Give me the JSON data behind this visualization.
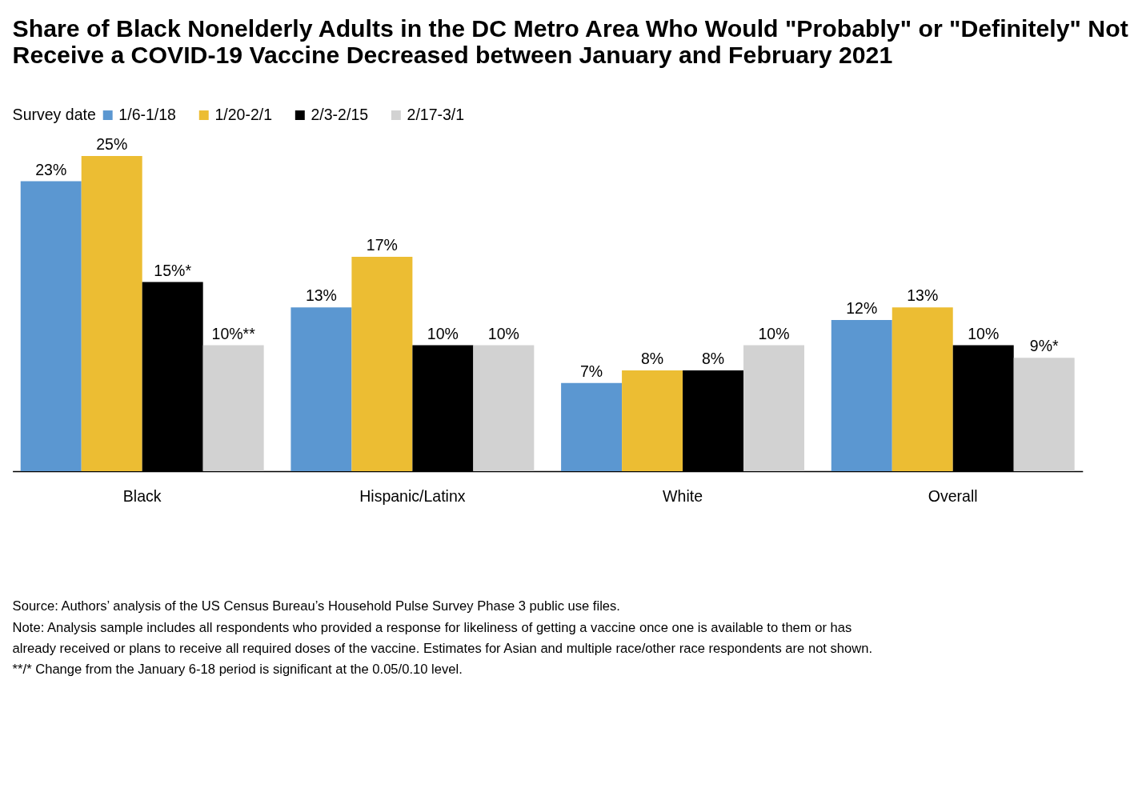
{
  "chart_data": {
    "type": "bar",
    "title": "Share of Black Nonelderly Adults in the DC Metro Area Who Would \"Probably\" or \"Definitely\" Not Receive a COVID-19 Vaccine Decreased between January and February 2021",
    "legend_title": "Survey date",
    "categories": [
      "Black",
      "Hispanic/Latinx",
      "White",
      "Overall"
    ],
    "series": [
      {
        "name": "1/6-1/18",
        "color": "#5b97d1",
        "values": [
          23,
          13,
          7,
          12
        ],
        "value_labels": [
          "23%",
          "13%",
          "7%",
          "12%"
        ]
      },
      {
        "name": "1/20-2/1",
        "color": "#ecbd33",
        "values": [
          25,
          17,
          8,
          13
        ],
        "value_labels": [
          "25%",
          "17%",
          "8%",
          "13%"
        ]
      },
      {
        "name": "2/3-2/15",
        "color": "#000000",
        "values": [
          15,
          10,
          8,
          10
        ],
        "value_labels": [
          "15%*",
          "10%",
          "8%",
          "10%"
        ]
      },
      {
        "name": "2/17-3/1",
        "color": "#d2d2d2",
        "values": [
          10,
          10,
          10,
          9
        ],
        "value_labels": [
          "10%**",
          "10%",
          "10%",
          "9%*"
        ]
      }
    ],
    "legend": "top",
    "grid": false,
    "tick_labels": "x",
    "annotations": [
      "Source: Authors’ analysis of the US Census Bureau’s Household Pulse Survey Phase 3 public use files.",
      "Note: Analysis sample includes all respondents who provided a response for likeliness of getting a vaccine once one is available to them or has already received or plans to receive all required doses of the vaccine.  Estimates for Asian and multiple race/other race respondents are not shown.",
      "**/* Change from the January 6-18 period is significant at the 0.05/0.10 level."
    ]
  }
}
